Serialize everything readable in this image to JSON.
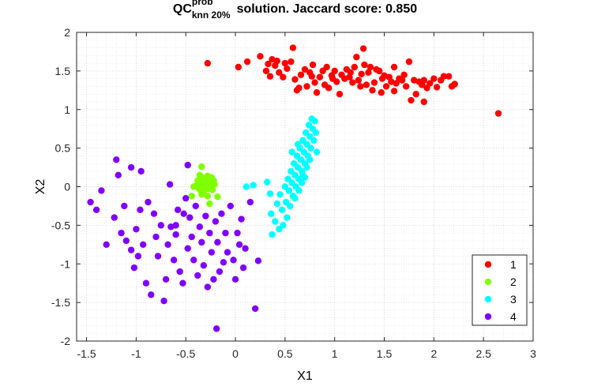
{
  "title": {
    "main": "QC",
    "superscript": "prob",
    "subscript": "knn 20%",
    "rest": "solution. Jaccard score: 0.850"
  },
  "chart_data": {
    "type": "scatter",
    "xlabel": "X1",
    "ylabel": "X2",
    "xlim": [
      -1.6,
      3
    ],
    "ylim": [
      -2,
      2
    ],
    "xticks": [
      -1.5,
      -1,
      -0.5,
      0,
      0.5,
      1,
      1.5,
      2,
      2.5,
      3
    ],
    "xtick_labels": [
      "-1.5",
      "-1",
      "-0.5",
      "0",
      "0.5",
      "1",
      "1.5",
      "2",
      "2.5",
      "3"
    ],
    "yticks": [
      -2,
      -1.5,
      -1,
      -0.5,
      0,
      0.5,
      1,
      1.5,
      2
    ],
    "ytick_labels": [
      "-2",
      "-1.5",
      "-1",
      "-0.5",
      "0",
      "0.5",
      "1",
      "1.5",
      "2"
    ],
    "grid": true,
    "legend_position": "bottom-right",
    "series": [
      {
        "name": "1",
        "color": "#ff0000",
        "points": [
          [
            -0.28,
            1.6
          ],
          [
            0.03,
            1.55
          ],
          [
            0.12,
            1.62
          ],
          [
            0.25,
            1.69
          ],
          [
            0.31,
            1.5
          ],
          [
            0.33,
            1.59
          ],
          [
            0.37,
            1.65
          ],
          [
            0.4,
            1.57
          ],
          [
            0.42,
            1.63
          ],
          [
            0.44,
            1.48
          ],
          [
            0.48,
            1.42
          ],
          [
            0.5,
            1.6
          ],
          [
            0.52,
            1.53
          ],
          [
            0.56,
            1.62
          ],
          [
            0.6,
            1.39
          ],
          [
            0.62,
            1.25
          ],
          [
            0.64,
            1.28
          ],
          [
            0.66,
            1.45
          ],
          [
            0.7,
            1.52
          ],
          [
            0.72,
            1.3
          ],
          [
            0.75,
            1.48
          ],
          [
            0.78,
            1.58
          ],
          [
            0.8,
            1.35
          ],
          [
            0.82,
            1.22
          ],
          [
            0.85,
            1.42
          ],
          [
            0.88,
            1.5
          ],
          [
            0.9,
            1.32
          ],
          [
            0.92,
            1.55
          ],
          [
            0.94,
            1.28
          ],
          [
            0.97,
            1.44
          ],
          [
            1.0,
            1.5
          ],
          [
            1.02,
            1.36
          ],
          [
            1.05,
            1.2
          ],
          [
            1.07,
            1.45
          ],
          [
            1.1,
            1.4
          ],
          [
            1.12,
            1.52
          ],
          [
            1.15,
            1.42
          ],
          [
            1.18,
            1.35
          ],
          [
            1.2,
            1.55
          ],
          [
            1.22,
            1.68
          ],
          [
            1.24,
            1.38
          ],
          [
            1.27,
            1.46
          ],
          [
            1.29,
            1.79
          ],
          [
            1.3,
            1.58
          ],
          [
            1.32,
            1.32
          ],
          [
            1.34,
            1.48
          ],
          [
            1.36,
            1.55
          ],
          [
            1.38,
            1.25
          ],
          [
            1.4,
            1.35
          ],
          [
            1.42,
            1.52
          ],
          [
            1.45,
            1.5
          ],
          [
            1.48,
            1.4
          ],
          [
            1.5,
            1.44
          ],
          [
            1.52,
            1.3
          ],
          [
            1.55,
            1.42
          ],
          [
            1.57,
            1.36
          ],
          [
            1.6,
            1.55
          ],
          [
            1.62,
            1.34
          ],
          [
            1.65,
            1.4
          ],
          [
            1.68,
            1.38
          ],
          [
            1.7,
            1.45
          ],
          [
            1.72,
            1.3
          ],
          [
            1.75,
            1.62
          ],
          [
            1.77,
            1.12
          ],
          [
            1.8,
            1.38
          ],
          [
            1.82,
            1.2
          ],
          [
            1.85,
            1.36
          ],
          [
            1.88,
            1.32
          ],
          [
            1.9,
            1.38
          ],
          [
            1.93,
            1.28
          ],
          [
            1.96,
            1.34
          ],
          [
            2.0,
            1.4
          ],
          [
            2.03,
            1.29
          ],
          [
            2.07,
            1.38
          ],
          [
            2.1,
            1.43
          ],
          [
            2.15,
            1.43
          ],
          [
            2.18,
            1.3
          ],
          [
            2.21,
            1.33
          ],
          [
            0.58,
            1.8
          ],
          [
            0.35,
            1.43
          ],
          [
            0.77,
            1.43
          ],
          [
            0.98,
            1.4
          ],
          [
            1.16,
            1.48
          ],
          [
            1.26,
            1.3
          ],
          [
            1.47,
            1.22
          ],
          [
            1.6,
            1.24
          ],
          [
            1.9,
            1.1
          ],
          [
            2.65,
            0.95
          ]
        ]
      },
      {
        "name": "2",
        "color": "#80ff00",
        "points": [
          [
            -0.34,
            0.26
          ],
          [
            -0.36,
            0.15
          ],
          [
            -0.38,
            0.08
          ],
          [
            -0.39,
            0.02
          ],
          [
            -0.37,
            -0.02
          ],
          [
            -0.35,
            -0.05
          ],
          [
            -0.34,
            0.05
          ],
          [
            -0.33,
            0.12
          ],
          [
            -0.32,
            -0.08
          ],
          [
            -0.31,
            0.0
          ],
          [
            -0.3,
            0.1
          ],
          [
            -0.29,
            0.04
          ],
          [
            -0.28,
            0.14
          ],
          [
            -0.27,
            -0.03
          ],
          [
            -0.26,
            0.07
          ],
          [
            -0.25,
            0.02
          ],
          [
            -0.24,
            0.12
          ],
          [
            -0.23,
            -0.04
          ],
          [
            -0.22,
            0.08
          ],
          [
            -0.21,
            0.03
          ],
          [
            -0.3,
            -0.02
          ],
          [
            -0.27,
            0.08
          ],
          [
            -0.33,
            0.02
          ],
          [
            -0.44,
            -0.12
          ],
          [
            -0.34,
            -0.1
          ],
          [
            -0.28,
            -0.12
          ],
          [
            -0.18,
            -0.13
          ],
          [
            -0.26,
            -0.22
          ],
          [
            -0.42,
            0.0
          ],
          [
            -0.36,
            0.05
          ]
        ]
      },
      {
        "name": "3",
        "color": "#00ffff",
        "points": [
          [
            0.11,
            0.0
          ],
          [
            0.18,
            0.02
          ],
          [
            0.32,
            0.06
          ],
          [
            0.35,
            -0.09
          ],
          [
            0.36,
            -0.35
          ],
          [
            0.37,
            -0.62
          ],
          [
            0.4,
            -0.45
          ],
          [
            0.42,
            -0.22
          ],
          [
            0.44,
            -0.55
          ],
          [
            0.45,
            -0.1
          ],
          [
            0.47,
            -0.3
          ],
          [
            0.48,
            -0.5
          ],
          [
            0.5,
            0.0
          ],
          [
            0.51,
            -0.2
          ],
          [
            0.52,
            -0.4
          ],
          [
            0.53,
            0.1
          ],
          [
            0.54,
            -0.05
          ],
          [
            0.55,
            -0.25
          ],
          [
            0.56,
            0.2
          ],
          [
            0.57,
            0.05
          ],
          [
            0.58,
            -0.12
          ],
          [
            0.59,
            0.3
          ],
          [
            0.6,
            0.15
          ],
          [
            0.61,
            0.0
          ],
          [
            0.62,
            0.4
          ],
          [
            0.63,
            0.25
          ],
          [
            0.64,
            0.1
          ],
          [
            0.65,
            0.5
          ],
          [
            0.66,
            0.35
          ],
          [
            0.67,
            0.2
          ],
          [
            0.68,
            0.6
          ],
          [
            0.69,
            0.45
          ],
          [
            0.7,
            0.3
          ],
          [
            0.71,
            0.7
          ],
          [
            0.72,
            0.55
          ],
          [
            0.73,
            0.4
          ],
          [
            0.74,
            0.8
          ],
          [
            0.75,
            0.65
          ],
          [
            0.76,
            0.5
          ],
          [
            0.77,
            0.88
          ],
          [
            0.78,
            0.75
          ],
          [
            0.79,
            0.6
          ],
          [
            0.8,
            0.85
          ],
          [
            0.81,
            0.7
          ],
          [
            0.82,
            0.45
          ],
          [
            0.72,
            0.25
          ],
          [
            0.68,
            0.15
          ],
          [
            0.64,
            -0.05
          ],
          [
            0.6,
            -0.15
          ],
          [
            0.57,
            0.45
          ],
          [
            0.63,
            0.55
          ],
          [
            0.67,
            0.05
          ],
          [
            0.7,
            0.12
          ],
          [
            0.75,
            0.35
          ]
        ]
      },
      {
        "name": "4",
        "color": "#8000ff",
        "points": [
          [
            -1.46,
            -0.2
          ],
          [
            -1.4,
            -0.3
          ],
          [
            -1.35,
            -0.05
          ],
          [
            -1.3,
            -0.75
          ],
          [
            -1.22,
            -0.4
          ],
          [
            -1.2,
            0.35
          ],
          [
            -1.18,
            0.15
          ],
          [
            -1.15,
            -0.6
          ],
          [
            -1.12,
            -0.25
          ],
          [
            -1.1,
            -0.7
          ],
          [
            -1.05,
            0.25
          ],
          [
            -1.02,
            -1.05
          ],
          [
            -1.0,
            -0.55
          ],
          [
            -0.98,
            -0.9
          ],
          [
            -0.95,
            0.2
          ],
          [
            -0.93,
            -0.75
          ],
          [
            -0.9,
            -1.25
          ],
          [
            -0.88,
            -0.2
          ],
          [
            -0.85,
            -1.4
          ],
          [
            -0.82,
            -0.35
          ],
          [
            -0.8,
            -0.65
          ],
          [
            -0.78,
            -0.9
          ],
          [
            -0.75,
            -0.5
          ],
          [
            -0.72,
            -1.48
          ],
          [
            -0.7,
            -1.2
          ],
          [
            -0.68,
            -0.75
          ],
          [
            -0.65,
            -0.52
          ],
          [
            -0.62,
            -0.95
          ],
          [
            -0.6,
            -0.5
          ],
          [
            -0.58,
            -0.3
          ],
          [
            -0.56,
            -1.1
          ],
          [
            -0.53,
            -1.25
          ],
          [
            -0.5,
            -0.15
          ],
          [
            -0.48,
            -0.8
          ],
          [
            -0.46,
            -0.4
          ],
          [
            -0.44,
            -0.65
          ],
          [
            -0.42,
            -0.95
          ],
          [
            -0.4,
            -0.25
          ],
          [
            -0.38,
            -1.15
          ],
          [
            -0.36,
            -0.52
          ],
          [
            -0.34,
            -0.72
          ],
          [
            -0.32,
            -1.02
          ],
          [
            -0.3,
            -0.38
          ],
          [
            -0.28,
            -1.3
          ],
          [
            -0.26,
            -0.6
          ],
          [
            -0.24,
            -0.85
          ],
          [
            -0.22,
            -1.2
          ],
          [
            -0.2,
            -0.45
          ],
          [
            -0.18,
            -0.72
          ],
          [
            -0.16,
            -1.1
          ],
          [
            -0.14,
            -0.35
          ],
          [
            -0.12,
            -0.98
          ],
          [
            -0.1,
            -0.6
          ],
          [
            -0.08,
            -0.85
          ],
          [
            -0.05,
            -0.25
          ],
          [
            -0.02,
            -0.95
          ],
          [
            0.0,
            -1.2
          ],
          [
            0.02,
            -0.6
          ],
          [
            0.04,
            -0.75
          ],
          [
            0.06,
            -0.42
          ],
          [
            0.08,
            -1.05
          ],
          [
            0.1,
            -0.8
          ],
          [
            0.15,
            -0.2
          ],
          [
            0.2,
            -1.58
          ],
          [
            0.23,
            -0.96
          ],
          [
            -0.19,
            -1.84
          ],
          [
            -0.66,
            0.03
          ],
          [
            -0.48,
            0.28
          ],
          [
            -0.52,
            -0.35
          ],
          [
            -1.05,
            -0.82
          ],
          [
            -0.96,
            -0.3
          ],
          [
            -0.6,
            -0.62
          ]
        ]
      }
    ]
  }
}
